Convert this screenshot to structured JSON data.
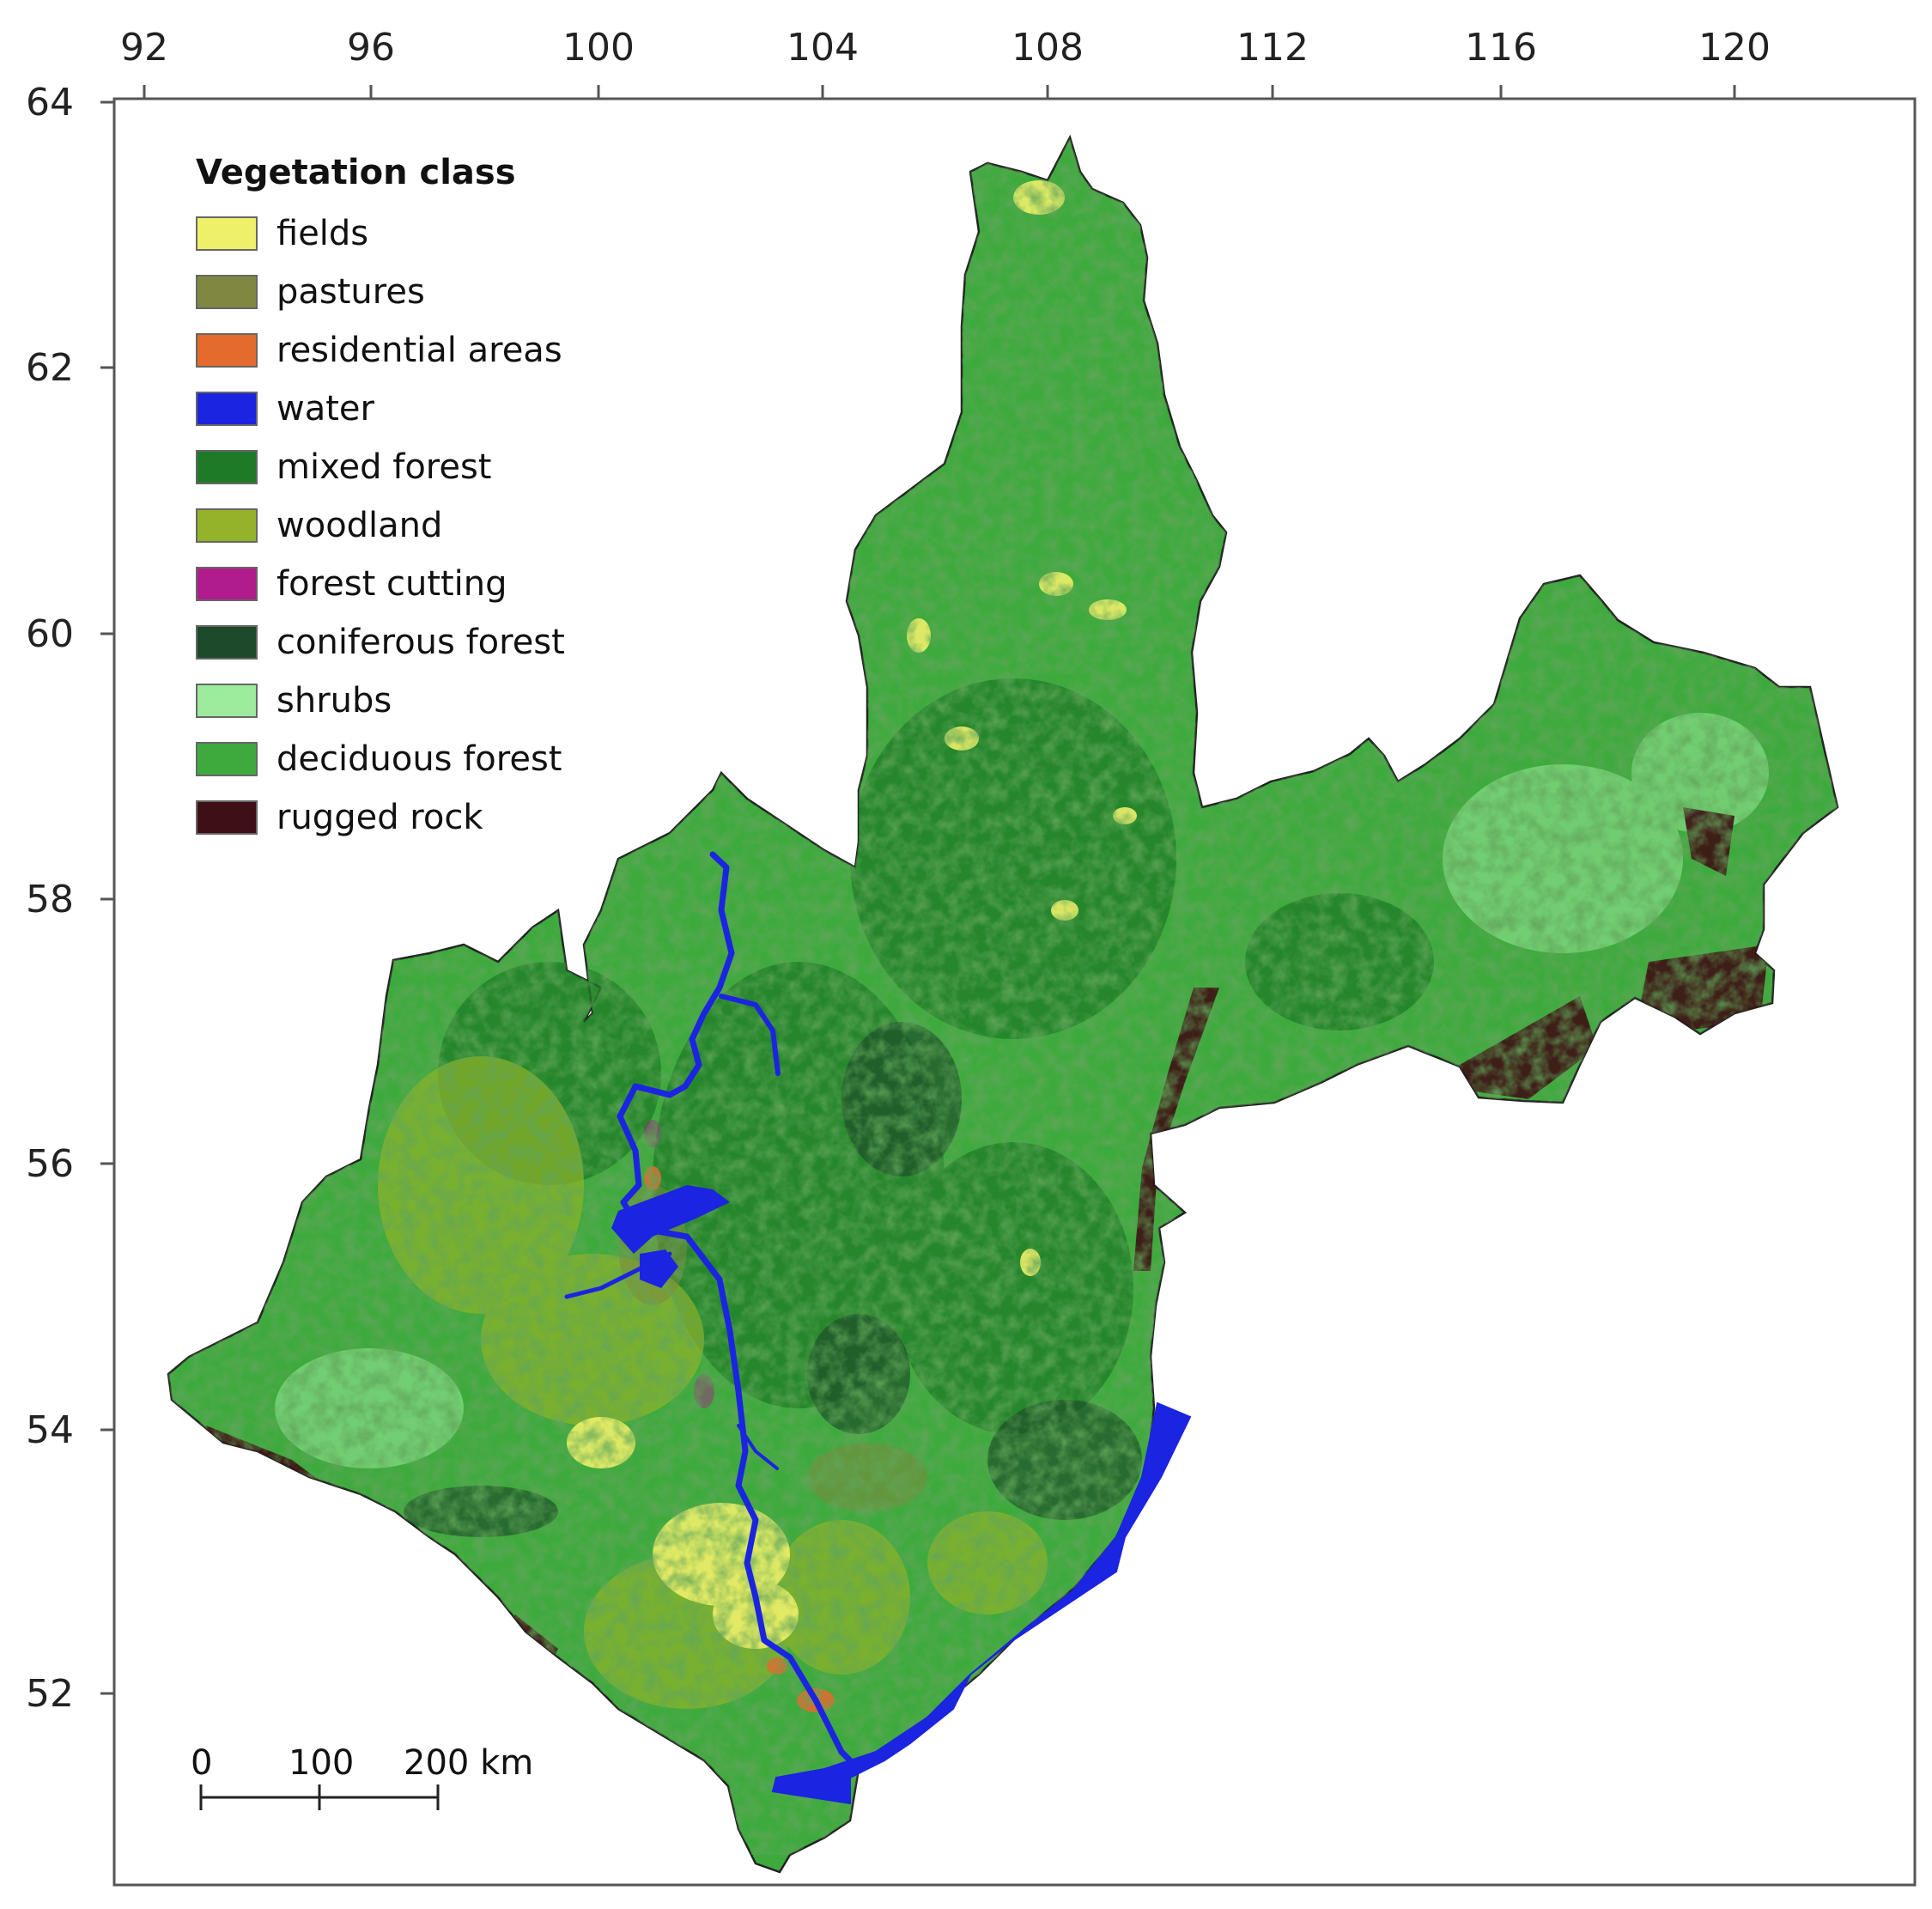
{
  "map": {
    "axes": {
      "longitude_ticks": [
        "92",
        "96",
        "100",
        "104",
        "108",
        "112",
        "116",
        "120"
      ],
      "latitude_ticks": [
        "64",
        "62",
        "60",
        "58",
        "56",
        "54",
        "52"
      ]
    },
    "legend": {
      "title": "Vegetation class",
      "items": [
        {
          "label": "fields",
          "color": "#eef06a"
        },
        {
          "label": "pastures",
          "color": "#7f8740"
        },
        {
          "label": "residential areas",
          "color": "#e56a2e"
        },
        {
          "label": "water",
          "color": "#1b24e0"
        },
        {
          "label": "mixed forest",
          "color": "#1e7a26"
        },
        {
          "label": "woodland",
          "color": "#93b32a"
        },
        {
          "label": "forest cutting",
          "color": "#b01c8c"
        },
        {
          "label": "coniferous forest",
          "color": "#1d4a2a"
        },
        {
          "label": "shrubs",
          "color": "#9deb9c"
        },
        {
          "label": "deciduous forest",
          "color": "#3eaa3e"
        },
        {
          "label": "rugged rock",
          "color": "#3e0f14"
        }
      ]
    },
    "scale_bar": {
      "labels": [
        "0",
        "100",
        "200 km"
      ]
    }
  }
}
